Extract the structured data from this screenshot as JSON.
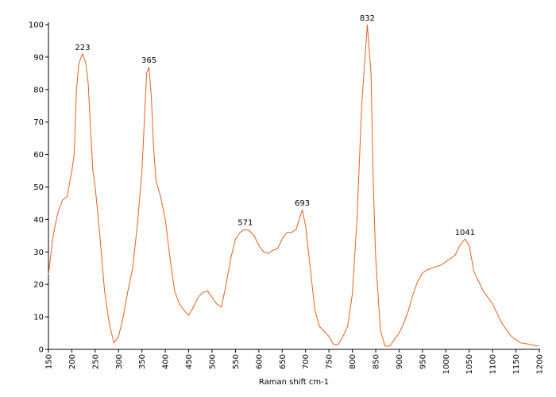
{
  "chart_data": {
    "type": "line",
    "x_label": "Raman shift cm-1",
    "xlim": [
      150,
      1200
    ],
    "ylim": [
      0,
      100
    ],
    "xticks": [
      150,
      200,
      250,
      300,
      350,
      400,
      450,
      500,
      550,
      600,
      650,
      700,
      750,
      800,
      850,
      900,
      950,
      1000,
      1050,
      1100,
      1150,
      1200
    ],
    "yticks": [
      0,
      10,
      20,
      30,
      40,
      50,
      60,
      70,
      80,
      90,
      100
    ],
    "series": [
      {
        "color": "#e0601c",
        "x": [
          150,
          160,
          170,
          180,
          190,
          200,
          205,
          210,
          215,
          220,
          223,
          230,
          235,
          240,
          245,
          250,
          260,
          270,
          280,
          290,
          300,
          310,
          320,
          330,
          340,
          350,
          355,
          360,
          365,
          370,
          375,
          380,
          390,
          400,
          410,
          420,
          430,
          440,
          450,
          460,
          470,
          480,
          490,
          500,
          510,
          520,
          530,
          540,
          550,
          560,
          571,
          580,
          590,
          600,
          610,
          620,
          630,
          640,
          650,
          660,
          670,
          680,
          693,
          700,
          710,
          720,
          730,
          740,
          750,
          760,
          770,
          780,
          790,
          800,
          810,
          820,
          832,
          840,
          845,
          850,
          860,
          870,
          880,
          890,
          900,
          910,
          920,
          930,
          940,
          950,
          960,
          970,
          980,
          990,
          1000,
          1010,
          1020,
          1030,
          1041,
          1050,
          1060,
          1070,
          1080,
          1090,
          1100,
          1110,
          1120,
          1130,
          1140,
          1150,
          1160,
          1170,
          1180,
          1190,
          1200
        ],
        "values": [
          23,
          35,
          42,
          46,
          47,
          55,
          60,
          80,
          88,
          90,
          91,
          88,
          82,
          68,
          55,
          50,
          35,
          18,
          8,
          2,
          4,
          10,
          18,
          25,
          38,
          55,
          70,
          85,
          87,
          78,
          62,
          52,
          47,
          40,
          28,
          18,
          14,
          12,
          10.5,
          13,
          16,
          17.5,
          18,
          16,
          14,
          13,
          20,
          28,
          34,
          36,
          37,
          36.5,
          35,
          32,
          30,
          29.5,
          30.5,
          31,
          34,
          36,
          36,
          37,
          43,
          38,
          25,
          12,
          7,
          5.5,
          4,
          1.5,
          1.5,
          4,
          7,
          17,
          40,
          75,
          100,
          85,
          50,
          28,
          6,
          1,
          1,
          3,
          5,
          8,
          12,
          17,
          21,
          23.5,
          24.5,
          25,
          25.5,
          26,
          27,
          28,
          29,
          32,
          34,
          32,
          24,
          21,
          18,
          16,
          14,
          11,
          8,
          6,
          4,
          3,
          2,
          1.8,
          1.5,
          1.2,
          1
        ]
      }
    ],
    "annotations": [
      {
        "label": "223",
        "x": 223,
        "y": 91
      },
      {
        "label": "365",
        "x": 365,
        "y": 87
      },
      {
        "label": "571",
        "x": 571,
        "y": 37
      },
      {
        "label": "693",
        "x": 693,
        "y": 43
      },
      {
        "label": "832",
        "x": 832,
        "y": 100
      },
      {
        "label": "1041",
        "x": 1041,
        "y": 34
      }
    ]
  }
}
